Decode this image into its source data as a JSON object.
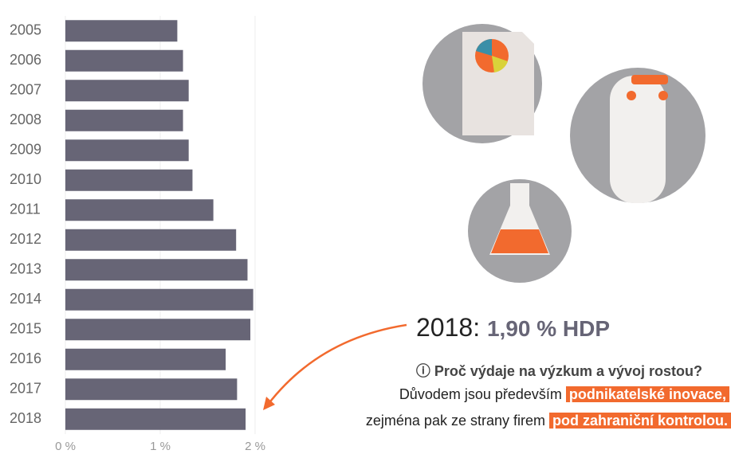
{
  "chart_data": {
    "type": "barh",
    "categories": [
      "2005",
      "2006",
      "2007",
      "2008",
      "2009",
      "2010",
      "2011",
      "2012",
      "2013",
      "2014",
      "2015",
      "2016",
      "2017",
      "2018"
    ],
    "values": [
      1.18,
      1.24,
      1.3,
      1.24,
      1.3,
      1.34,
      1.56,
      1.8,
      1.92,
      1.98,
      1.95,
      1.69,
      1.81,
      1.9
    ],
    "color": "#676576",
    "xlim": [
      0,
      2
    ],
    "xticks": [
      {
        "value": 0,
        "label": "0 %"
      },
      {
        "value": 1,
        "label": "1 %"
      },
      {
        "value": 2,
        "label": "2 %"
      }
    ],
    "grid": true,
    "annotations": {
      "year": "2018:",
      "value": "1,90 % HDP",
      "question": "Proč výdaje na výzkum a vývoj rostou?",
      "line1": "Důvodem jsou především",
      "highlight1": "podnikatelské inovace,",
      "line2": "zejména pak ze strany firem",
      "highlight2": "pod zahraniční kontrolou."
    }
  }
}
